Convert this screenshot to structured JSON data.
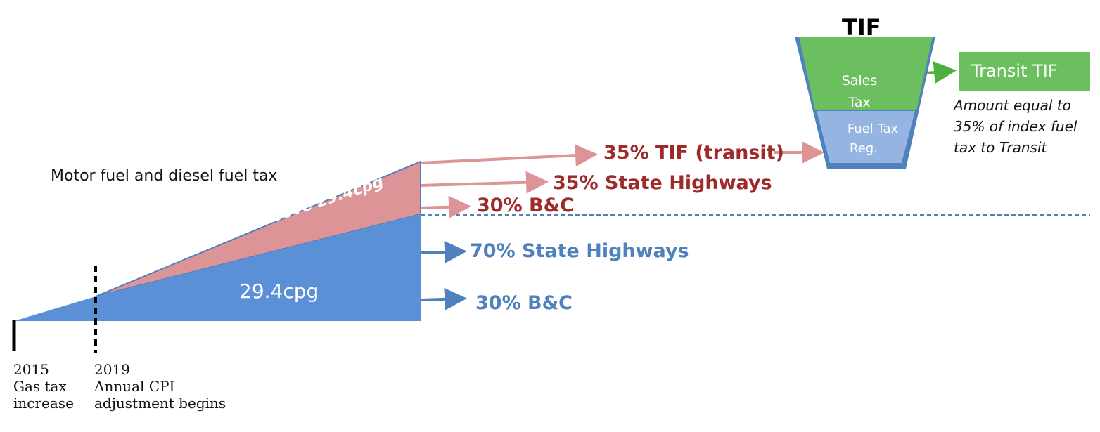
{
  "title": "Motor fuel and diesel fuel tax",
  "base_area_label": "29.4cpg",
  "above_area_label": "above 29.4cpg",
  "timeline": [
    {
      "year": "2015",
      "line1": "Gas tax",
      "line2": "increase"
    },
    {
      "year": "2019",
      "line1": "Annual CPI",
      "line2": "adjustment begins"
    }
  ],
  "red_destinations": [
    "35% TIF (transit)",
    "35% State Highways",
    "30% B&C"
  ],
  "blue_destinations": [
    "70% State Highways",
    "30% B&C"
  ],
  "tif": {
    "title": "TIF",
    "sales_tax_line1": "Sales",
    "sales_tax_line2": "Tax",
    "fuel_tax_line1": "Fuel Tax",
    "fuel_tax_line2": "Reg.",
    "output_label": "Transit TIF",
    "note_line1": "Amount equal to",
    "note_line2": "35% of index fuel",
    "note_line3": "tax to Transit"
  },
  "colors": {
    "blue": "#5b8fd6",
    "pink": "#dc9496",
    "green": "#6cbf5f",
    "light_blue": "#95b4e1",
    "dark_red": "#9e2a2b",
    "blue_text": "#4f81bd"
  }
}
